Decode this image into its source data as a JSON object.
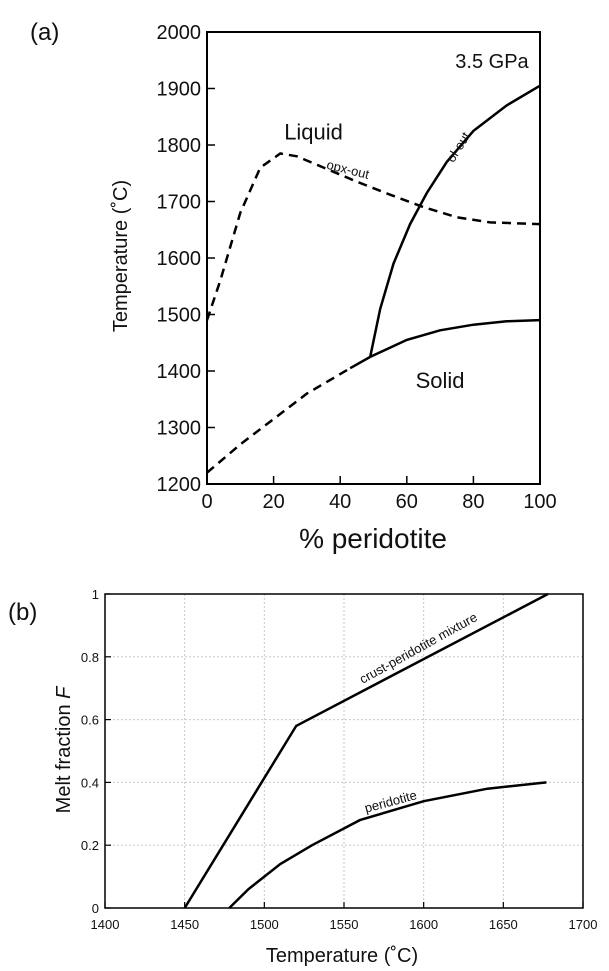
{
  "chart_data": [
    {
      "type": "line",
      "panel_label": "(a)",
      "annotation": "3.5 GPa",
      "xlabel": "% peridotite",
      "ylabel": "Temperature (˚C)",
      "xlim": [
        0,
        100
      ],
      "ylim": [
        1200,
        2000
      ],
      "xticks": [
        0,
        20,
        40,
        60,
        80,
        100
      ],
      "yticks": [
        1200,
        1300,
        1400,
        1500,
        1600,
        1700,
        1800,
        1900,
        2000
      ],
      "grid": false,
      "region_labels": [
        {
          "text": "Liquid",
          "x": 32,
          "y": 1810
        },
        {
          "text": "Solid",
          "x": 70,
          "y": 1370
        }
      ],
      "series": [
        {
          "name": "opx-out",
          "style": "dashed",
          "points": [
            [
              0,
              1490
            ],
            [
              4,
              1560
            ],
            [
              10,
              1680
            ],
            [
              16,
              1760
            ],
            [
              22,
              1785
            ],
            [
              27,
              1780
            ],
            [
              35,
              1760
            ],
            [
              45,
              1735
            ],
            [
              55,
              1712
            ],
            [
              65,
              1690
            ],
            [
              75,
              1672
            ],
            [
              85,
              1663
            ],
            [
              100,
              1660
            ]
          ]
        },
        {
          "name": "ol-out",
          "style": "solid",
          "points": [
            [
              49,
              1425
            ],
            [
              52,
              1510
            ],
            [
              56,
              1590
            ],
            [
              61,
              1660
            ],
            [
              66,
              1715
            ],
            [
              72,
              1770
            ],
            [
              80,
              1825
            ],
            [
              90,
              1870
            ],
            [
              100,
              1905
            ]
          ]
        },
        {
          "name": "",
          "style": "solid",
          "points": [
            [
              43,
              1405
            ],
            [
              49,
              1425
            ],
            [
              60,
              1455
            ],
            [
              70,
              1472
            ],
            [
              80,
              1482
            ],
            [
              90,
              1488
            ],
            [
              100,
              1490
            ]
          ]
        },
        {
          "name": "",
          "style": "dashed",
          "points": [
            [
              0,
              1220
            ],
            [
              10,
              1270
            ],
            [
              20,
              1315
            ],
            [
              30,
              1360
            ],
            [
              43,
              1405
            ]
          ]
        }
      ]
    },
    {
      "type": "line",
      "panel_label": "(b)",
      "xlabel": "Temperature (˚C)",
      "ylabel": "Melt fraction F",
      "xlim": [
        1400,
        1700
      ],
      "ylim": [
        0,
        1
      ],
      "xticks": [
        1400,
        1450,
        1500,
        1550,
        1600,
        1650,
        1700
      ],
      "yticks": [
        0,
        0.2,
        0.4,
        0.6,
        0.8,
        1
      ],
      "grid": true,
      "series": [
        {
          "name": "crust-peridotite mixture",
          "style": "solid",
          "points": [
            [
              1450,
              0
            ],
            [
              1520,
              0.58
            ],
            [
              1678,
              1.0
            ]
          ]
        },
        {
          "name": "peridotite",
          "style": "solid",
          "points": [
            [
              1478,
              0
            ],
            [
              1490,
              0.06
            ],
            [
              1510,
              0.14
            ],
            [
              1530,
              0.2
            ],
            [
              1560,
              0.28
            ],
            [
              1600,
              0.34
            ],
            [
              1640,
              0.38
            ],
            [
              1677,
              0.4
            ]
          ]
        }
      ]
    }
  ]
}
